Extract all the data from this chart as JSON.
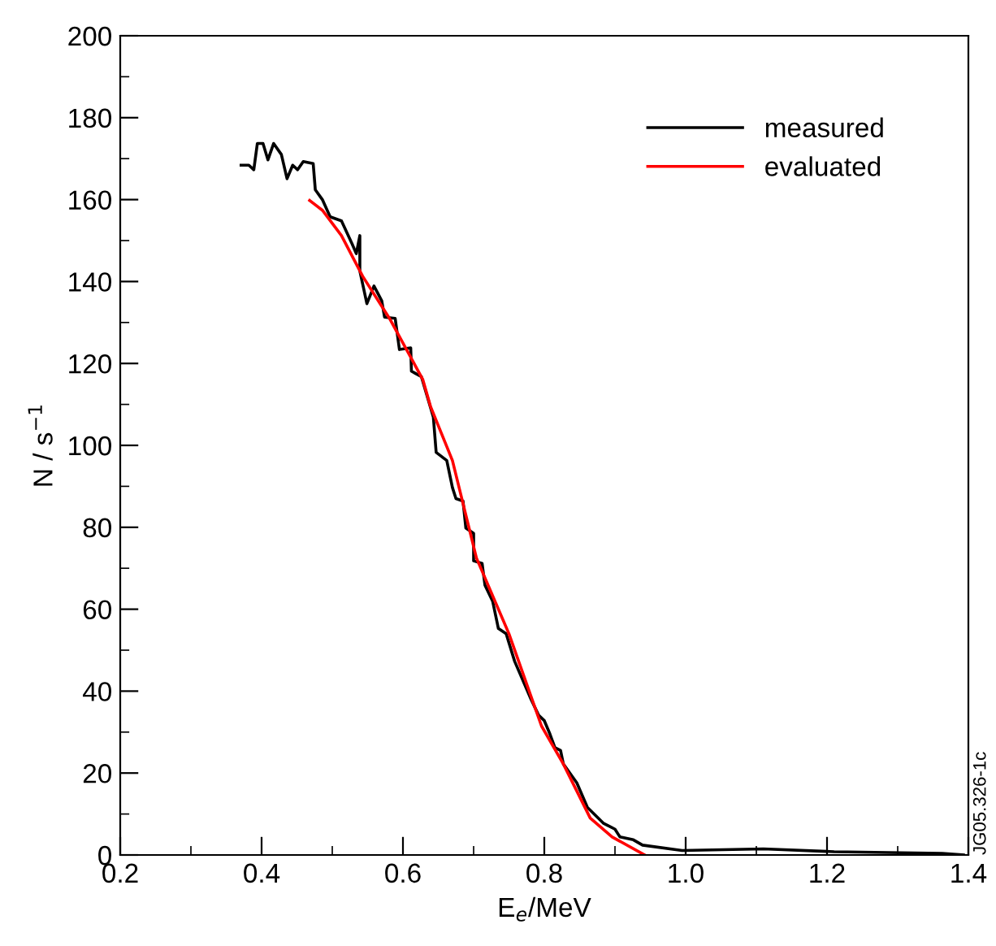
{
  "chart_data": {
    "type": "line",
    "xlabel": "E$_{e}$/MeV",
    "ylabel": "N / s$^{−1}$",
    "xlim": [
      0.2,
      1.4
    ],
    "ylim": [
      0,
      200
    ],
    "xticks": [
      0.2,
      {
        "value": 0.3,
        "label": null
      },
      0.4,
      {
        "value": 0.5,
        "label": null
      },
      0.6,
      {
        "value": 0.7,
        "label": null
      },
      0.8,
      {
        "value": 0.9,
        "label": null
      },
      {
        "value": 1.0,
        "label": "1.0"
      },
      {
        "value": 1.1,
        "label": null
      },
      1.2,
      {
        "value": 1.3,
        "label": null
      },
      1.4
    ],
    "yticks": [
      0,
      {
        "value": 10,
        "label": null
      },
      20,
      {
        "value": 30,
        "label": null
      },
      40,
      {
        "value": 50,
        "label": null
      },
      60,
      {
        "value": 70,
        "label": null
      },
      80,
      {
        "value": 90,
        "label": null
      },
      100,
      {
        "value": 110,
        "label": null
      },
      120,
      {
        "value": 130,
        "label": null
      },
      140,
      {
        "value": 150,
        "label": null
      },
      160,
      {
        "value": 170,
        "label": null
      },
      180,
      {
        "value": 190,
        "label": null
      },
      200
    ],
    "grid": false,
    "legend": "top right",
    "marker": "none",
    "line_style": "solid",
    "annotations": [
      "JG05.326-1c"
    ],
    "series": [
      {
        "name": "measured",
        "color": "#000000",
        "x": [
          0.371,
          0.382,
          0.389,
          0.394,
          0.402,
          0.409,
          0.417,
          0.428,
          0.436,
          0.444,
          0.451,
          0.459,
          0.473,
          0.476,
          0.486,
          0.497,
          0.513,
          0.528,
          0.534,
          0.539,
          0.539,
          0.549,
          0.559,
          0.57,
          0.574,
          0.589,
          0.595,
          0.611,
          0.612,
          0.626,
          0.643,
          0.647,
          0.662,
          0.67,
          0.675,
          0.685,
          0.689,
          0.7,
          0.7,
          0.712,
          0.716,
          0.727,
          0.735,
          0.746,
          0.758,
          0.781,
          0.792,
          0.8,
          0.808,
          0.815,
          0.823,
          0.827,
          0.846,
          0.861,
          0.884,
          0.9,
          0.907,
          0.926,
          0.939,
          0.995,
          1.11,
          1.21,
          1.363,
          1.393
        ],
        "values": [
          168.4,
          168.4,
          167.3,
          173.7,
          173.7,
          169.7,
          173.7,
          171.0,
          165.1,
          168.4,
          167.3,
          169.3,
          168.8,
          162.4,
          160.0,
          155.8,
          154.8,
          149.2,
          146.8,
          151.2,
          142.6,
          134.6,
          138.9,
          135.3,
          131.3,
          131.0,
          123.4,
          123.8,
          118.1,
          116.8,
          106.9,
          98.3,
          96.3,
          89.7,
          87.0,
          86.4,
          79.8,
          78.5,
          71.8,
          71.2,
          65.9,
          61.9,
          55.3,
          54.0,
          47.3,
          38.1,
          34.1,
          32.8,
          29.5,
          26.2,
          25.5,
          22.2,
          17.6,
          11.6,
          7.7,
          6.3,
          4.4,
          3.7,
          2.4,
          1.1,
          1.5,
          0.8,
          0.4,
          0
        ]
      },
      {
        "name": "evaluated",
        "color": "#ff0000",
        "x": [
          0.468,
          0.486,
          0.513,
          0.543,
          0.582,
          0.628,
          0.639,
          0.67,
          0.704,
          0.75,
          0.796,
          0.827,
          0.865,
          0.896,
          0.942
        ],
        "values": [
          159.8,
          157.4,
          151.2,
          141.3,
          130.7,
          116.1,
          109.5,
          96.3,
          72.5,
          54.0,
          31.5,
          22.2,
          9.0,
          4.4,
          0
        ]
      }
    ]
  }
}
